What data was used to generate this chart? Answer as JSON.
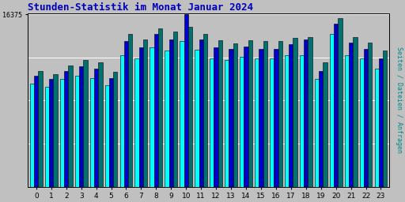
{
  "title": "Stunden-Statistik im Monat Januar 2024",
  "ylabel": "Seiten / Dateien / Anfragen",
  "hours": [
    0,
    1,
    2,
    3,
    4,
    5,
    6,
    7,
    8,
    9,
    10,
    11,
    12,
    13,
    14,
    15,
    16,
    17,
    18,
    19,
    20,
    21,
    22,
    23
  ],
  "ymax": 16375,
  "ytick_val": 16375,
  "ytick_label": "16375",
  "background_color": "#c0c0c0",
  "color_cyan": "#00ffff",
  "color_blue": "#0000cc",
  "color_teal": "#007070",
  "bar_edge_color": "#000000",
  "title_color": "#0000bb",
  "ylabel_color": "#008888",
  "seiten": [
    9800,
    9500,
    10200,
    10500,
    10300,
    9600,
    12500,
    12200,
    13200,
    12900,
    13800,
    13000,
    12200,
    12000,
    12300,
    12200,
    12200,
    12500,
    12500,
    10200,
    14500,
    12500,
    12200,
    11200
  ],
  "dateien": [
    10500,
    10200,
    11000,
    11400,
    11200,
    10300,
    13800,
    13200,
    14500,
    14000,
    16375,
    14000,
    13200,
    13100,
    13300,
    13100,
    13100,
    13500,
    14000,
    11000,
    15500,
    13700,
    13100,
    12200
  ],
  "anfragen": [
    11000,
    10700,
    11500,
    12000,
    11800,
    10900,
    14500,
    14000,
    15000,
    14700,
    15200,
    14500,
    13900,
    13600,
    13900,
    13800,
    13800,
    14100,
    14200,
    11800,
    16000,
    14200,
    13700,
    12900
  ],
  "figsize": [
    5.12,
    2.56
  ],
  "dpi": 100,
  "bar_width": 0.28
}
